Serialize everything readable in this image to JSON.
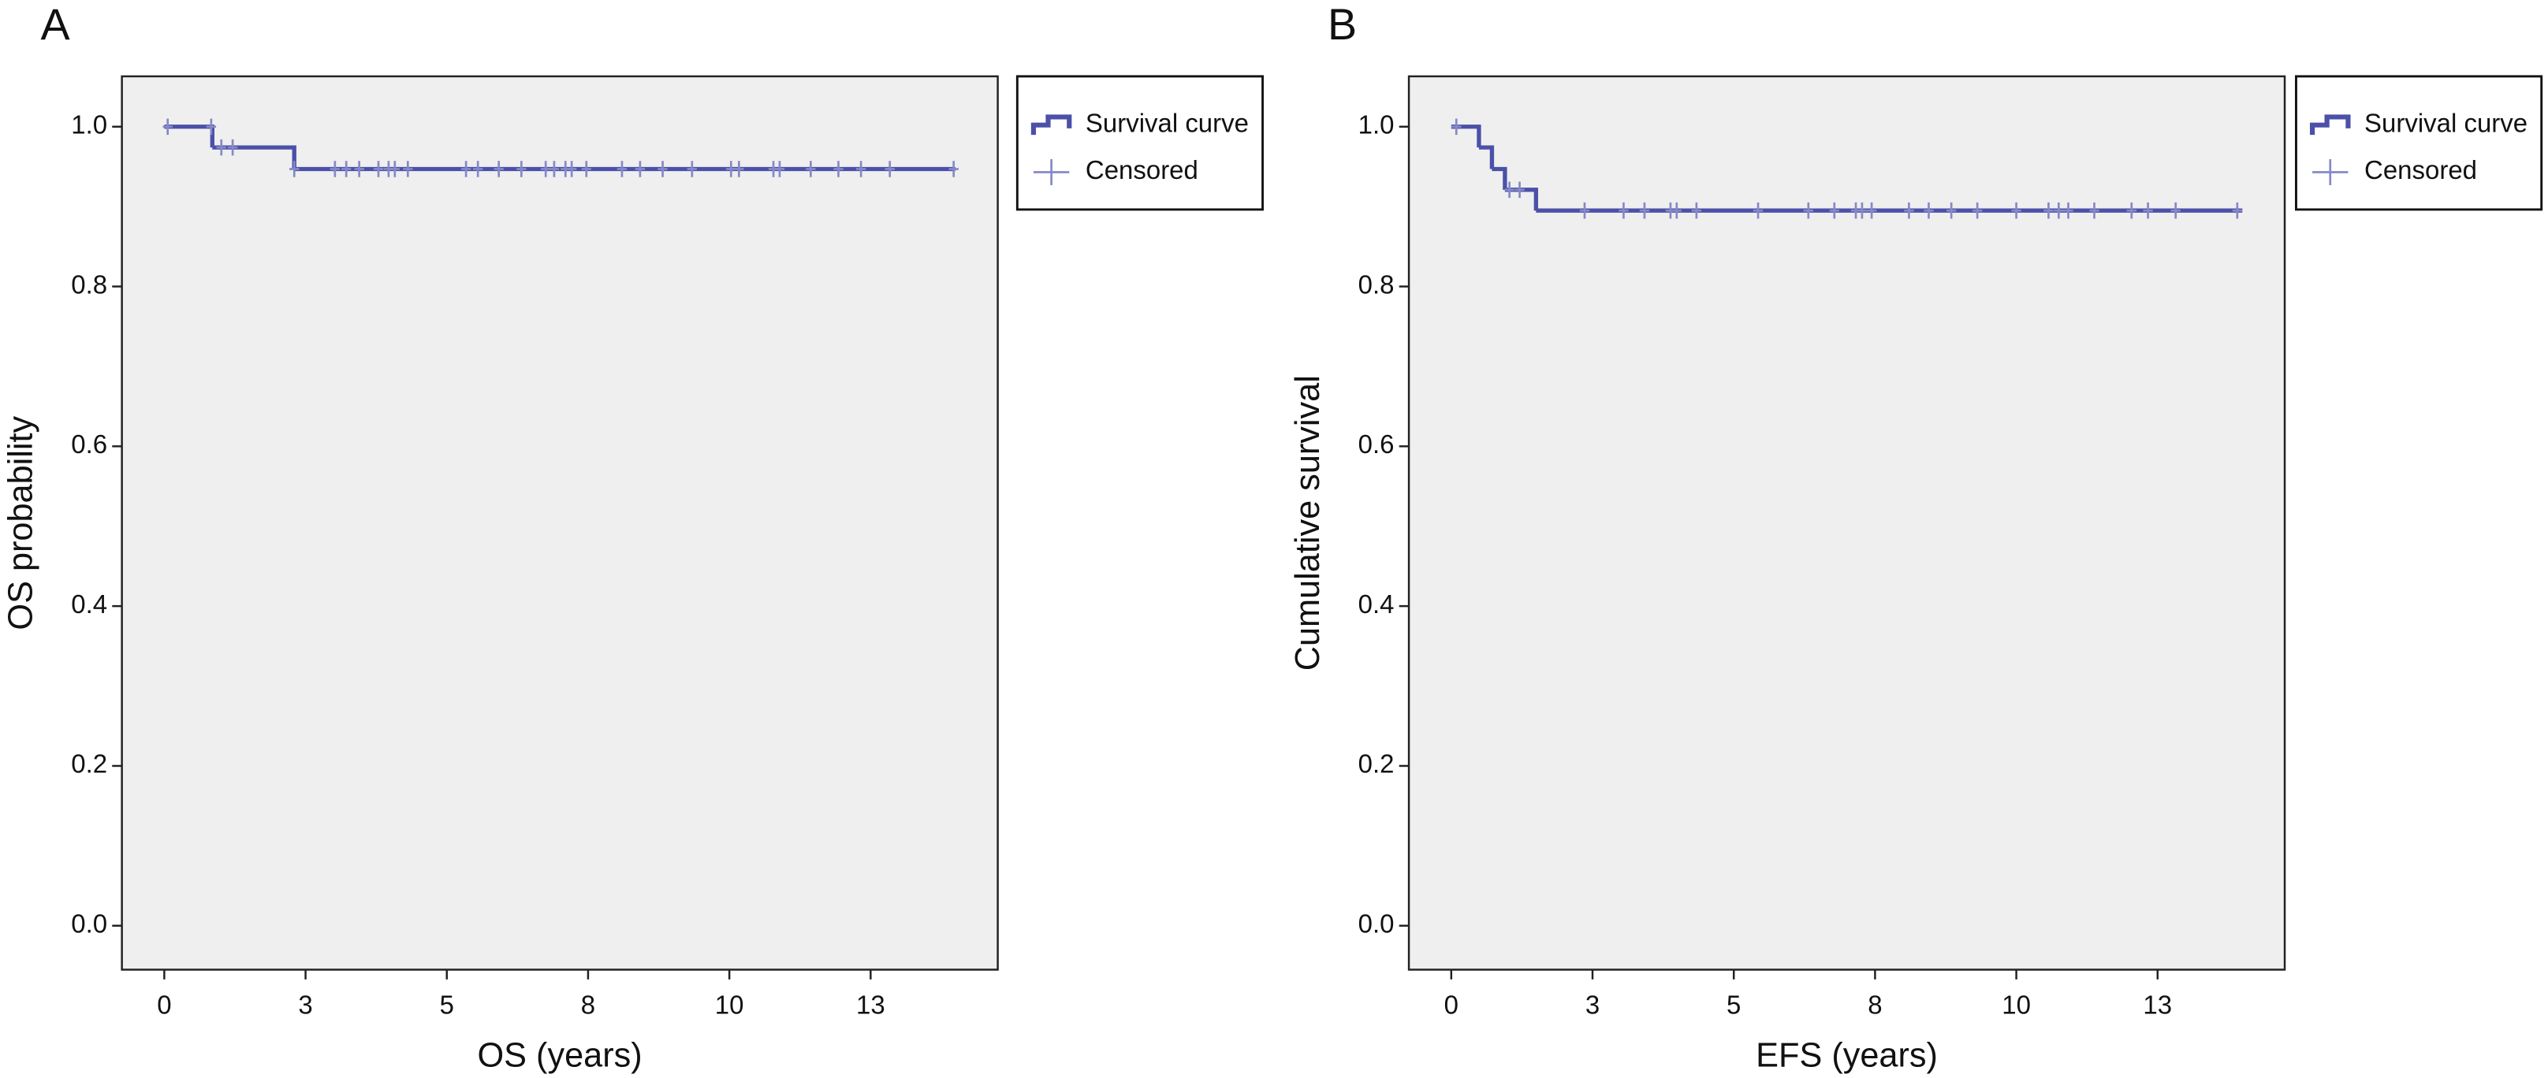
{
  "chart_data": [
    {
      "type": "step",
      "label": "A",
      "x_label": "OS (years)",
      "y_label": "OS probability",
      "xlim": [
        -0.75,
        14.75
      ],
      "ylim": [
        -0.055,
        1.063
      ],
      "xticks": [
        0,
        {
          "value": 2.5,
          "label": "3"
        },
        5,
        {
          "value": 7.5,
          "label": "8"
        },
        10,
        {
          "value": 12.5,
          "label": "13"
        }
      ],
      "yticks": [
        {
          "value": 0,
          "label": "0.0"
        },
        0.2,
        0.4,
        0.6,
        0.8,
        {
          "value": 1,
          "label": "1.0"
        }
      ],
      "background": "#efefef",
      "legend": "outside right",
      "series": [
        {
          "name": "Survival curve",
          "color": "#4b50a8",
          "x": [
            0,
            0.85,
            2.3,
            14
          ],
          "values": [
            1.0,
            0.974,
            0.947,
            0.947
          ]
        },
        {
          "name": "Censored",
          "color": "#8589c8",
          "x": [
            0.06,
            0.83,
            1.01,
            1.21,
            2.3,
            3.02,
            3.22,
            3.45,
            3.79,
            3.97,
            4.08,
            4.31,
            5.34,
            5.55,
            5.92,
            6.32,
            6.75,
            6.9,
            7.1,
            7.21,
            7.47,
            8.1,
            8.42,
            8.82,
            9.34,
            10.03,
            10.17,
            10.78,
            10.89,
            11.44,
            11.93,
            12.33,
            12.84,
            13.97
          ],
          "values": [
            1.0,
            1.0,
            0.974,
            0.974,
            0.947,
            0.947,
            0.947,
            0.947,
            0.947,
            0.947,
            0.947,
            0.947,
            0.947,
            0.947,
            0.947,
            0.947,
            0.947,
            0.947,
            0.947,
            0.947,
            0.947,
            0.947,
            0.947,
            0.947,
            0.947,
            0.947,
            0.947,
            0.947,
            0.947,
            0.947,
            0.947,
            0.947,
            0.947,
            0.947
          ]
        }
      ]
    },
    {
      "type": "step",
      "label": "B",
      "x_label": "EFS (years)",
      "y_label": "Cumulative survival",
      "xlim": [
        -0.75,
        14.75
      ],
      "ylim": [
        -0.055,
        1.063
      ],
      "xticks": [
        0,
        {
          "value": 2.5,
          "label": "3"
        },
        5,
        {
          "value": 7.5,
          "label": "8"
        },
        10,
        {
          "value": 12.5,
          "label": "13"
        }
      ],
      "yticks": [
        {
          "value": 0,
          "label": "0.0"
        },
        0.2,
        0.4,
        0.6,
        0.8,
        {
          "value": 1,
          "label": "1.0"
        }
      ],
      "background": "#efefef",
      "legend": "outside right",
      "series": [
        {
          "name": "Survival curve",
          "color": "#4b50a8",
          "x": [
            0,
            0.49,
            0.72,
            0.95,
            1.5,
            14
          ],
          "values": [
            1.0,
            0.974,
            0.947,
            0.921,
            0.895,
            0.895
          ]
        },
        {
          "name": "Censored",
          "color": "#8589c8",
          "x": [
            0.09,
            1.03,
            1.21,
            2.36,
            3.05,
            3.42,
            3.88,
            3.99,
            4.34,
            5.43,
            6.32,
            6.78,
            7.16,
            7.27,
            7.44,
            8.1,
            8.45,
            8.85,
            9.31,
            10.0,
            10.57,
            10.75,
            10.92,
            11.38,
            12.04,
            12.33,
            12.82,
            13.91
          ],
          "values": [
            1.0,
            0.921,
            0.921,
            0.895,
            0.895,
            0.895,
            0.895,
            0.895,
            0.895,
            0.895,
            0.895,
            0.895,
            0.895,
            0.895,
            0.895,
            0.895,
            0.895,
            0.895,
            0.895,
            0.895,
            0.895,
            0.895,
            0.895,
            0.895,
            0.895,
            0.895,
            0.895,
            0.895
          ]
        }
      ]
    }
  ]
}
